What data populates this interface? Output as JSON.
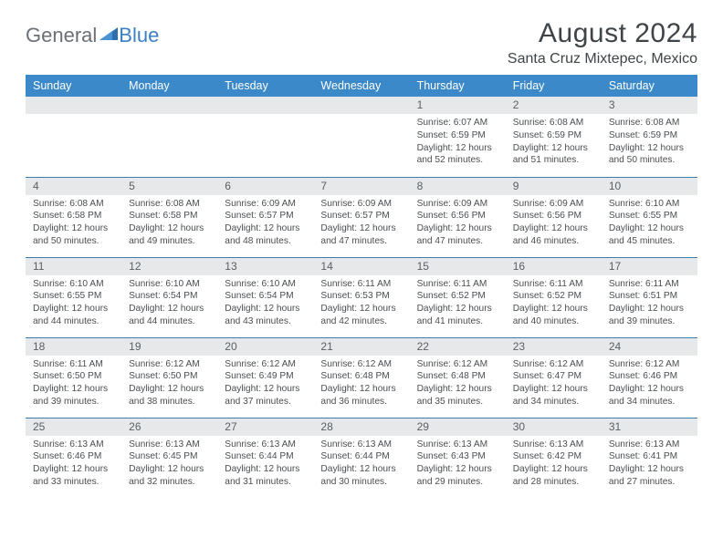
{
  "brand": {
    "word1": "General",
    "word2": "Blue"
  },
  "title": "August 2024",
  "location": "Santa Cruz Mixtepec, Mexico",
  "colors": {
    "header_bg": "#3b89c9",
    "header_text": "#ffffff",
    "daynum_bg": "#e7e8ea",
    "row_border": "#3b7fa8",
    "brand_gray": "#6b7076",
    "brand_blue": "#3b7fc4"
  },
  "daysOfWeek": [
    "Sunday",
    "Monday",
    "Tuesday",
    "Wednesday",
    "Thursday",
    "Friday",
    "Saturday"
  ],
  "grid": [
    [
      null,
      null,
      null,
      null,
      {
        "n": "1",
        "sr": "6:07 AM",
        "ss": "6:59 PM",
        "dl": "12 hours and 52 minutes."
      },
      {
        "n": "2",
        "sr": "6:08 AM",
        "ss": "6:59 PM",
        "dl": "12 hours and 51 minutes."
      },
      {
        "n": "3",
        "sr": "6:08 AM",
        "ss": "6:59 PM",
        "dl": "12 hours and 50 minutes."
      }
    ],
    [
      {
        "n": "4",
        "sr": "6:08 AM",
        "ss": "6:58 PM",
        "dl": "12 hours and 50 minutes."
      },
      {
        "n": "5",
        "sr": "6:08 AM",
        "ss": "6:58 PM",
        "dl": "12 hours and 49 minutes."
      },
      {
        "n": "6",
        "sr": "6:09 AM",
        "ss": "6:57 PM",
        "dl": "12 hours and 48 minutes."
      },
      {
        "n": "7",
        "sr": "6:09 AM",
        "ss": "6:57 PM",
        "dl": "12 hours and 47 minutes."
      },
      {
        "n": "8",
        "sr": "6:09 AM",
        "ss": "6:56 PM",
        "dl": "12 hours and 47 minutes."
      },
      {
        "n": "9",
        "sr": "6:09 AM",
        "ss": "6:56 PM",
        "dl": "12 hours and 46 minutes."
      },
      {
        "n": "10",
        "sr": "6:10 AM",
        "ss": "6:55 PM",
        "dl": "12 hours and 45 minutes."
      }
    ],
    [
      {
        "n": "11",
        "sr": "6:10 AM",
        "ss": "6:55 PM",
        "dl": "12 hours and 44 minutes."
      },
      {
        "n": "12",
        "sr": "6:10 AM",
        "ss": "6:54 PM",
        "dl": "12 hours and 44 minutes."
      },
      {
        "n": "13",
        "sr": "6:10 AM",
        "ss": "6:54 PM",
        "dl": "12 hours and 43 minutes."
      },
      {
        "n": "14",
        "sr": "6:11 AM",
        "ss": "6:53 PM",
        "dl": "12 hours and 42 minutes."
      },
      {
        "n": "15",
        "sr": "6:11 AM",
        "ss": "6:52 PM",
        "dl": "12 hours and 41 minutes."
      },
      {
        "n": "16",
        "sr": "6:11 AM",
        "ss": "6:52 PM",
        "dl": "12 hours and 40 minutes."
      },
      {
        "n": "17",
        "sr": "6:11 AM",
        "ss": "6:51 PM",
        "dl": "12 hours and 39 minutes."
      }
    ],
    [
      {
        "n": "18",
        "sr": "6:11 AM",
        "ss": "6:50 PM",
        "dl": "12 hours and 39 minutes."
      },
      {
        "n": "19",
        "sr": "6:12 AM",
        "ss": "6:50 PM",
        "dl": "12 hours and 38 minutes."
      },
      {
        "n": "20",
        "sr": "6:12 AM",
        "ss": "6:49 PM",
        "dl": "12 hours and 37 minutes."
      },
      {
        "n": "21",
        "sr": "6:12 AM",
        "ss": "6:48 PM",
        "dl": "12 hours and 36 minutes."
      },
      {
        "n": "22",
        "sr": "6:12 AM",
        "ss": "6:48 PM",
        "dl": "12 hours and 35 minutes."
      },
      {
        "n": "23",
        "sr": "6:12 AM",
        "ss": "6:47 PM",
        "dl": "12 hours and 34 minutes."
      },
      {
        "n": "24",
        "sr": "6:12 AM",
        "ss": "6:46 PM",
        "dl": "12 hours and 34 minutes."
      }
    ],
    [
      {
        "n": "25",
        "sr": "6:13 AM",
        "ss": "6:46 PM",
        "dl": "12 hours and 33 minutes."
      },
      {
        "n": "26",
        "sr": "6:13 AM",
        "ss": "6:45 PM",
        "dl": "12 hours and 32 minutes."
      },
      {
        "n": "27",
        "sr": "6:13 AM",
        "ss": "6:44 PM",
        "dl": "12 hours and 31 minutes."
      },
      {
        "n": "28",
        "sr": "6:13 AM",
        "ss": "6:44 PM",
        "dl": "12 hours and 30 minutes."
      },
      {
        "n": "29",
        "sr": "6:13 AM",
        "ss": "6:43 PM",
        "dl": "12 hours and 29 minutes."
      },
      {
        "n": "30",
        "sr": "6:13 AM",
        "ss": "6:42 PM",
        "dl": "12 hours and 28 minutes."
      },
      {
        "n": "31",
        "sr": "6:13 AM",
        "ss": "6:41 PM",
        "dl": "12 hours and 27 minutes."
      }
    ]
  ],
  "labels": {
    "sunrise": "Sunrise:",
    "sunset": "Sunset:",
    "daylight": "Daylight:"
  }
}
